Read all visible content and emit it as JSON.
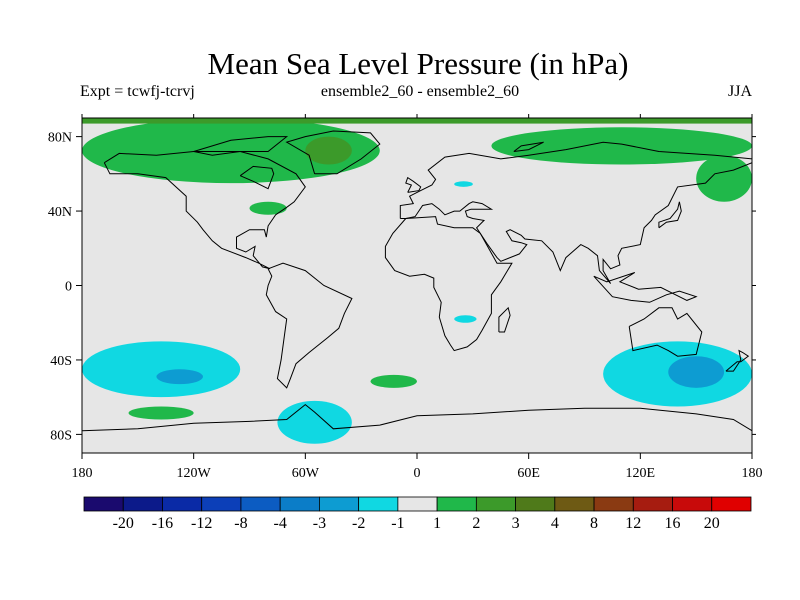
{
  "chart_data": {
    "type": "heatmap",
    "title": "Mean Sea Level Pressure (in hPa)",
    "subtitle_left": "Expt = tcwfj-tcrvj",
    "subtitle_center": "ensemble2_60 - ensemble2_60",
    "subtitle_right": "JJA",
    "x_range": [
      -180,
      180
    ],
    "y_range": [
      -90,
      90
    ],
    "x_ticks": [
      {
        "value": -180,
        "label": "180"
      },
      {
        "value": -120,
        "label": "120W"
      },
      {
        "value": -60,
        "label": "60W"
      },
      {
        "value": 0,
        "label": "0"
      },
      {
        "value": 60,
        "label": "60E"
      },
      {
        "value": 120,
        "label": "120E"
      },
      {
        "value": 180,
        "label": "180"
      }
    ],
    "y_ticks": [
      {
        "value": 80,
        "label": "80N"
      },
      {
        "value": 40,
        "label": "40N"
      },
      {
        "value": 0,
        "label": "0"
      },
      {
        "value": -40,
        "label": "40S"
      },
      {
        "value": -80,
        "label": "80S"
      }
    ],
    "colorbar": {
      "levels": [
        "-20",
        "-16",
        "-12",
        "-8",
        "-4",
        "-3",
        "-2",
        "-1",
        "1",
        "2",
        "3",
        "4",
        "8",
        "12",
        "16",
        "20"
      ],
      "colors": [
        "#1a0a6e",
        "#0c1a8a",
        "#0a2aa6",
        "#0c3fb8",
        "#0c5cc2",
        "#0b7dc8",
        "#0d9cd2",
        "#10d8e2",
        "#e6e6e6",
        "#20b84a",
        "#3c9a2a",
        "#4f7a1a",
        "#6e5a14",
        "#8a3a12",
        "#a61c10",
        "#c80a0a",
        "#e00000"
      ]
    },
    "regions": [
      {
        "name": "arctic-north-america-positive",
        "value": 1.5,
        "lon": [
          -180,
          -20
        ],
        "lat": [
          55,
          90
        ]
      },
      {
        "name": "greenland-core",
        "value": 2.5,
        "lon": [
          -60,
          -35
        ],
        "lat": [
          65,
          80
        ]
      },
      {
        "name": "eurasia-arctic-positive",
        "value": 1.5,
        "lon": [
          40,
          180
        ],
        "lat": [
          65,
          85
        ]
      },
      {
        "name": "eastern-siberia-positive",
        "value": 1.5,
        "lon": [
          150,
          180
        ],
        "lat": [
          45,
          70
        ]
      },
      {
        "name": "south-pacific-negative",
        "value": -1.5,
        "lon": [
          -180,
          -95
        ],
        "lat": [
          -60,
          -30
        ]
      },
      {
        "name": "south-pacific-core",
        "value": -2.5,
        "lon": [
          -140,
          -115
        ],
        "lat": [
          -53,
          -45
        ]
      },
      {
        "name": "australia-negative",
        "value": -1.5,
        "lon": [
          100,
          180
        ],
        "lat": [
          -65,
          -30
        ]
      },
      {
        "name": "australia-core",
        "value": -2.5,
        "lon": [
          135,
          165
        ],
        "lat": [
          -55,
          -38
        ]
      },
      {
        "name": "weddell-negative",
        "value": -1.5,
        "lon": [
          -75,
          -35
        ],
        "lat": [
          -85,
          -62
        ]
      },
      {
        "name": "south-atlantic-positive",
        "value": 1.5,
        "lon": [
          -25,
          0
        ],
        "lat": [
          -55,
          -48
        ]
      },
      {
        "name": "amundsen-positive",
        "value": 1.5,
        "lon": [
          -155,
          -120
        ],
        "lat": [
          -72,
          -65
        ]
      },
      {
        "name": "north-atlantic-positive",
        "value": 1.5,
        "lon": [
          -90,
          -70
        ],
        "lat": [
          38,
          45
        ]
      },
      {
        "name": "africa-negative",
        "value": -1.5,
        "lon": [
          20,
          32
        ],
        "lat": [
          -20,
          -16
        ]
      },
      {
        "name": "mediterranean-negative",
        "value": -1.5,
        "lon": [
          20,
          30
        ],
        "lat": [
          53,
          56
        ]
      }
    ]
  }
}
